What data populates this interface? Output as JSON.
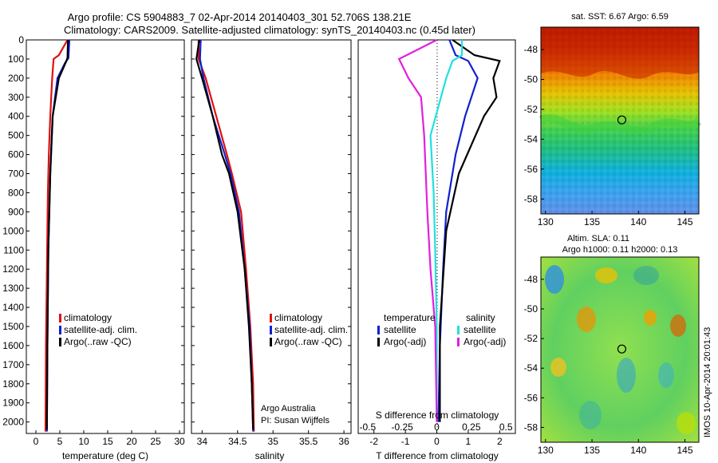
{
  "header": {
    "line1": "Argo profile: CS 5904883_7 02-Apr-2014 20140403_301 52.706S 138.21E",
    "line2": "Climatology: CARS2009. Satellite-adjusted climatology: synTS_20140403.nc (0.45d later)"
  },
  "colors": {
    "climatology": "#e01010",
    "satellite": "#1020d0",
    "argo": "#000000",
    "sat_s": "#20e0e0",
    "argo_s": "#e020e0"
  },
  "chart_data": [
    {
      "type": "line",
      "xlabel": "temperature (deg C)",
      "xlim": [
        -2,
        31
      ],
      "ylim": [
        2060,
        0
      ],
      "xticks": [
        "0",
        "5",
        "10",
        "15",
        "20",
        "25",
        "30"
      ],
      "yticks": [
        "0",
        "100",
        "200",
        "300",
        "400",
        "500",
        "600",
        "700",
        "800",
        "900",
        "1000",
        "1100",
        "1200",
        "1300",
        "1400",
        "1500",
        "1600",
        "1700",
        "1800",
        "1900",
        "2000"
      ],
      "legend": [
        "climatology",
        "satellite-adj. clim.",
        "Argo(..raw -QC)"
      ],
      "series": [
        {
          "name": "climatology",
          "color": "#e01010",
          "x": [
            6.6,
            4.8,
            3.7,
            3.4,
            3.0,
            2.7,
            2.5,
            2.3,
            2.1,
            2.0
          ],
          "y": [
            0,
            80,
            100,
            200,
            400,
            600,
            800,
            1200,
            1600,
            2050
          ]
        },
        {
          "name": "satellite-adj. clim.",
          "color": "#1020d0",
          "x": [
            7.0,
            6.8,
            6.1,
            4.5,
            3.5,
            3.0,
            2.6,
            2.4,
            2.3
          ],
          "y": [
            0,
            95,
            120,
            200,
            400,
            700,
            1100,
            1600,
            2050
          ]
        },
        {
          "name": "Argo(..raw -QC)",
          "color": "#000000",
          "x": [
            6.7,
            6.6,
            6.2,
            4.8,
            3.5,
            3.0,
            2.6,
            2.4,
            2.3
          ],
          "y": [
            0,
            95,
            120,
            200,
            400,
            700,
            1100,
            1600,
            2040
          ]
        }
      ]
    },
    {
      "type": "line",
      "xlabel": "salinity",
      "xlim": [
        33.85,
        36.1
      ],
      "ylim": [
        2060,
        0
      ],
      "xticks": [
        "34",
        "34.5",
        "35",
        "35.5",
        "36"
      ],
      "legend": [
        "climatology",
        "satellite-adj. clim.",
        "Argo(..raw -QC)"
      ],
      "annotation": [
        "Argo Australia",
        "PI: Susan Wijffels"
      ],
      "series": [
        {
          "name": "climatology",
          "color": "#e01010",
          "x": [
            33.95,
            33.95,
            34.05,
            34.2,
            34.35,
            34.42,
            34.55,
            34.62,
            34.68,
            34.72,
            34.73
          ],
          "y": [
            0,
            100,
            200,
            400,
            600,
            700,
            900,
            1200,
            1500,
            1800,
            2050
          ]
        },
        {
          "name": "satellite-adj. clim.",
          "color": "#1020d0",
          "x": [
            33.98,
            33.97,
            34.02,
            34.15,
            34.32,
            34.4,
            34.52,
            34.6,
            34.67,
            34.7,
            34.72
          ],
          "y": [
            0,
            100,
            200,
            400,
            600,
            700,
            900,
            1200,
            1500,
            1800,
            2050
          ]
        },
        {
          "name": "Argo(..raw -QC)",
          "color": "#000000",
          "x": [
            33.96,
            33.92,
            34.0,
            34.15,
            34.28,
            34.38,
            34.5,
            34.6,
            34.66,
            34.7,
            34.72
          ],
          "y": [
            0,
            100,
            200,
            400,
            600,
            700,
            900,
            1200,
            1500,
            1800,
            2040
          ]
        }
      ]
    },
    {
      "type": "line",
      "xlabel": "T difference from climatology",
      "xlabel_top": "S difference from climatology",
      "xlim": [
        -2.5,
        2.5
      ],
      "ylim": [
        2060,
        0
      ],
      "xticks": [
        "-2",
        "-1",
        "0",
        "1",
        "2"
      ],
      "xticks_top": [
        "-0.5",
        "-0.25",
        "0",
        "0.25",
        "0.5"
      ],
      "legend_left_title": "temperature",
      "legend_left": [
        "satellite",
        "Argo(-adj)"
      ],
      "legend_right_title": "salinity",
      "legend_right": [
        "satellite",
        "Argo(-adj)"
      ],
      "series": [
        {
          "name": "satellite",
          "color": "#1020d0",
          "x": [
            0.4,
            0.6,
            1.0,
            1.3,
            0.9,
            0.6,
            0.3,
            0.2,
            0.1,
            0.05
          ],
          "y": [
            0,
            80,
            110,
            200,
            400,
            600,
            900,
            1200,
            1600,
            2000
          ]
        },
        {
          "name": "Argo(-adj)",
          "color": "#000000",
          "x": [
            0.5,
            1.2,
            2.0,
            1.8,
            1.9,
            1.5,
            0.7,
            0.3,
            0.1,
            0.1
          ],
          "y": [
            0,
            80,
            110,
            200,
            300,
            400,
            700,
            1000,
            1500,
            2000
          ]
        },
        {
          "name": "satellite",
          "color": "#20e0e0",
          "x": [
            0.8,
            0.8,
            0.5,
            0.3,
            -0.2,
            -0.1,
            -0.05,
            0.0,
            0.0
          ],
          "y": [
            0,
            80,
            110,
            200,
            500,
            800,
            1100,
            1500,
            2000
          ]
        },
        {
          "name": "Argo(-adj)",
          "color": "#e020e0",
          "x": [
            0.0,
            -1.2,
            -0.9,
            -0.5,
            -0.4,
            -0.3,
            -0.2,
            -0.05,
            0.0
          ],
          "y": [
            0,
            100,
            200,
            300,
            500,
            900,
            1200,
            1500,
            2000
          ]
        }
      ]
    },
    {
      "type": "heatmap",
      "title": "sat. SST: 6.67  Argo: 6.59",
      "xlim": [
        129.5,
        146.5
      ],
      "ylim": [
        -59,
        -46.5
      ],
      "xticks": [
        "130",
        "135",
        "140",
        "145"
      ],
      "yticks": [
        "-48",
        "-50",
        "-52",
        "-54",
        "-56",
        "-58"
      ],
      "marker": {
        "lon": 138.21,
        "lat": -52.706
      }
    },
    {
      "type": "heatmap",
      "title_line1": "Altim. SLA: 0.11",
      "title_line2": "Argo h1000: 0.11  h2000: 0.13",
      "xlim": [
        129.5,
        146.5
      ],
      "ylim": [
        -59,
        -46.5
      ],
      "xticks": [
        "130",
        "135",
        "140",
        "145"
      ],
      "yticks": [
        "-48",
        "-50",
        "-52",
        "-54",
        "-56",
        "-58"
      ],
      "marker": {
        "lon": 138.21,
        "lat": -52.706
      },
      "side_label": "IMOS 10-Apr-2014 20:01:43"
    }
  ]
}
